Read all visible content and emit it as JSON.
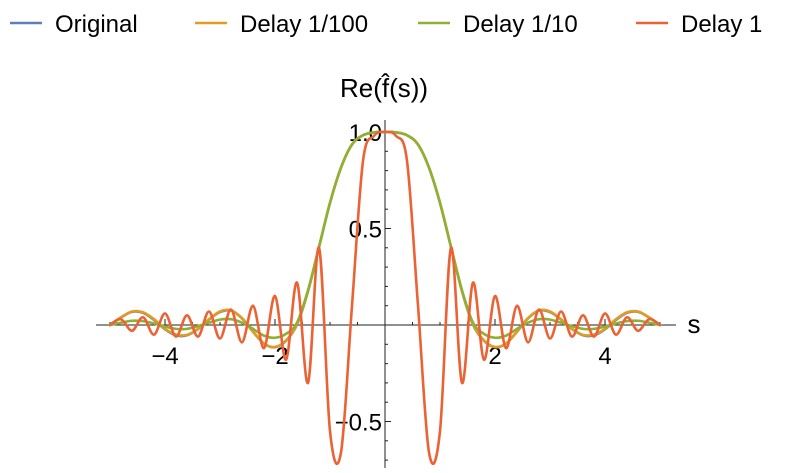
{
  "chart_data": {
    "type": "line",
    "title": "",
    "xlabel": "s",
    "ylabel": "Re(f̂(s))",
    "xlim": [
      -5,
      5
    ],
    "ylim": [
      -0.7,
      1.0
    ],
    "xticks": [
      -4,
      -2,
      2,
      4
    ],
    "yticks": [
      -0.5,
      0.5,
      1.0
    ],
    "xtick_labels": [
      "−4",
      "−2",
      "2",
      "4"
    ],
    "ytick_labels": [
      "−0.5",
      "0.5",
      "1.0"
    ],
    "legend_position": "top",
    "grid": false,
    "x": [
      -5.0,
      -4.8,
      -4.6,
      -4.4,
      -4.2,
      -4.0,
      -3.8,
      -3.6,
      -3.4,
      -3.2,
      -3.0,
      -2.8,
      -2.6,
      -2.4,
      -2.2,
      -2.0,
      -1.8,
      -1.6,
      -1.4,
      -1.2,
      -1.0,
      -0.8,
      -0.6,
      -0.4,
      -0.2,
      0.0,
      0.2,
      0.4,
      0.6,
      0.8,
      1.0,
      1.2,
      1.4,
      1.6,
      1.8,
      2.0,
      2.2,
      2.4,
      2.6,
      2.8,
      3.0,
      3.2,
      3.4,
      3.6,
      3.8,
      4.0,
      4.2,
      4.4,
      4.6,
      4.8,
      5.0
    ],
    "series": [
      {
        "name": "Original",
        "color": "#5e81b5",
        "values": [
          0.0,
          0.039,
          0.068,
          0.063,
          0.026,
          -0.022,
          -0.054,
          -0.053,
          -0.021,
          0.028,
          0.067,
          0.075,
          0.034,
          -0.035,
          -0.097,
          -0.115,
          -0.082,
          0.002,
          0.175,
          0.403,
          0.632,
          0.815,
          0.935,
          0.983,
          0.998,
          1.0,
          0.998,
          0.983,
          0.935,
          0.815,
          0.632,
          0.403,
          0.175,
          0.002,
          -0.082,
          -0.115,
          -0.097,
          -0.035,
          0.034,
          0.075,
          0.067,
          0.028,
          -0.021,
          -0.053,
          -0.054,
          -0.022,
          0.026,
          0.063,
          0.068,
          0.039,
          0.0
        ]
      },
      {
        "name": "Delay 1/100",
        "color": "#e19c24",
        "values": [
          0.0,
          0.04,
          0.07,
          0.066,
          0.03,
          -0.02,
          -0.05,
          -0.051,
          -0.02,
          0.03,
          0.07,
          0.076,
          0.036,
          -0.034,
          -0.096,
          -0.114,
          -0.08,
          0.004,
          0.176,
          0.404,
          0.633,
          0.816,
          0.936,
          0.984,
          0.998,
          1.0,
          0.998,
          0.984,
          0.936,
          0.816,
          0.633,
          0.404,
          0.176,
          0.004,
          -0.08,
          -0.114,
          -0.096,
          -0.034,
          0.036,
          0.076,
          0.07,
          0.03,
          -0.02,
          -0.051,
          -0.05,
          -0.02,
          0.03,
          0.066,
          0.07,
          0.04,
          0.0
        ]
      },
      {
        "name": "Delay 1/10",
        "color": "#8fb032",
        "values": [
          0.0,
          0.012,
          0.022,
          0.02,
          0.008,
          -0.008,
          -0.02,
          -0.02,
          -0.006,
          0.012,
          0.028,
          0.03,
          0.012,
          -0.02,
          -0.055,
          -0.066,
          -0.046,
          0.012,
          0.18,
          0.405,
          0.633,
          0.815,
          0.935,
          0.983,
          0.998,
          1.0,
          0.998,
          0.983,
          0.935,
          0.815,
          0.633,
          0.405,
          0.18,
          0.012,
          -0.046,
          -0.066,
          -0.055,
          -0.02,
          0.012,
          0.03,
          0.028,
          0.012,
          -0.006,
          -0.02,
          -0.02,
          -0.008,
          0.008,
          0.02,
          0.022,
          0.012,
          0.0
        ]
      },
      {
        "name": "Delay 1",
        "color": "#eb6235",
        "values": [
          0.0,
          0.03,
          -0.03,
          0.04,
          -0.05,
          0.06,
          -0.06,
          0.05,
          -0.06,
          0.07,
          -0.07,
          0.08,
          -0.09,
          0.1,
          -0.12,
          0.15,
          -0.18,
          0.22,
          -0.3,
          0.4,
          -0.55,
          -0.66,
          0.1,
          0.85,
          0.98,
          1.0,
          0.98,
          0.85,
          0.1,
          -0.66,
          -0.55,
          0.4,
          -0.3,
          0.22,
          -0.18,
          0.15,
          -0.12,
          0.1,
          -0.09,
          0.08,
          -0.07,
          0.07,
          -0.06,
          0.05,
          -0.06,
          0.06,
          -0.05,
          0.04,
          -0.03,
          0.03,
          0.0
        ]
      }
    ]
  }
}
